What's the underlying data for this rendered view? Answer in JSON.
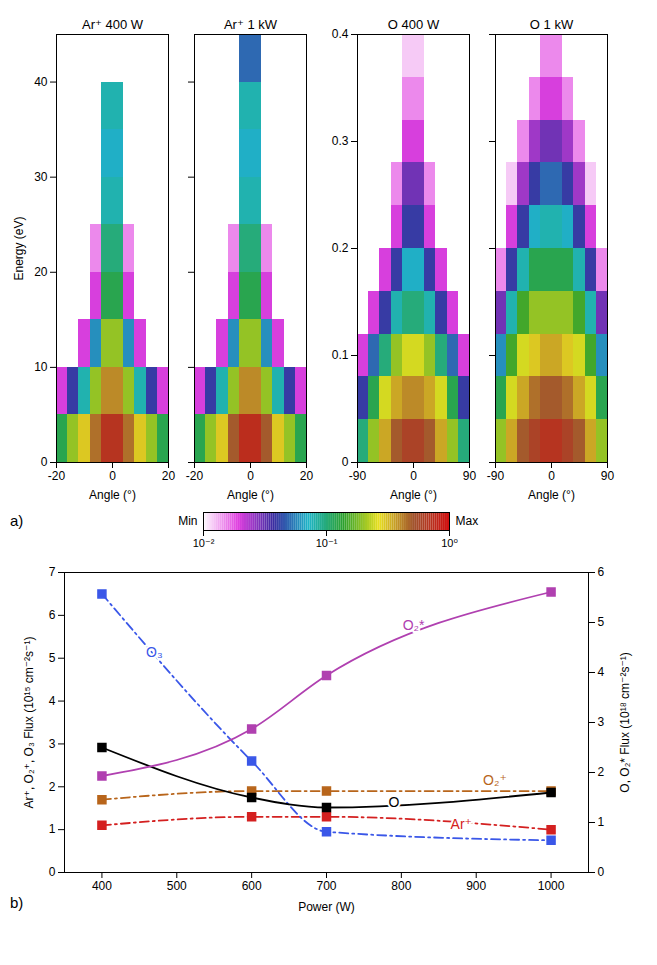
{
  "chart_data": [
    {
      "type": "heatmap",
      "panel_label": "a)",
      "title": "Ar⁺ 400 W",
      "xlabel": "Angle (°)",
      "ylabel": "Energy (eV)",
      "xlim": [
        -20,
        20
      ],
      "xticks": [
        -20,
        0,
        20
      ],
      "ylim": [
        0,
        45
      ],
      "yticks": [
        0,
        10,
        20,
        30,
        40
      ],
      "x_bins": [
        -20,
        -16,
        -12,
        -8,
        -4,
        0,
        4,
        8,
        12,
        16,
        20
      ],
      "y_bins": [
        0,
        5,
        10,
        15,
        20,
        25,
        30,
        35,
        40,
        45
      ],
      "cells": [
        [
          0.12,
          0.2,
          0.3,
          0.45,
          0.7,
          0.7,
          0.45,
          0.3,
          0.2,
          0.12
        ],
        [
          0.02,
          0.04,
          0.08,
          0.2,
          0.4,
          0.4,
          0.2,
          0.08,
          0.04,
          0.02
        ],
        [
          null,
          null,
          0.02,
          0.06,
          0.2,
          0.2,
          0.06,
          0.02,
          null,
          null
        ],
        [
          null,
          null,
          null,
          0.02,
          0.12,
          0.12,
          0.02,
          null,
          null,
          null
        ],
        [
          null,
          null,
          null,
          0.015,
          0.1,
          0.1,
          0.015,
          null,
          null,
          null
        ],
        [
          null,
          null,
          null,
          null,
          0.08,
          0.08,
          null,
          null,
          null,
          null
        ],
        [
          null,
          null,
          null,
          null,
          0.07,
          0.07,
          null,
          null,
          null,
          null
        ],
        [
          null,
          null,
          null,
          null,
          0.08,
          0.08,
          null,
          null,
          null,
          null
        ],
        [
          null,
          null,
          null,
          null,
          null,
          null,
          null,
          null,
          null,
          null
        ]
      ]
    },
    {
      "type": "heatmap",
      "title": "Ar⁺ 1 kW",
      "xlabel": "Angle (°)",
      "tick_labels": "x",
      "xlim": [
        -20,
        20
      ],
      "xticks": [
        -20,
        0,
        20
      ],
      "ylim": [
        0,
        45
      ],
      "yticks": [
        0,
        10,
        20,
        30,
        40
      ],
      "x_bins": [
        -20,
        -16,
        -12,
        -8,
        -4,
        0,
        4,
        8,
        12,
        16,
        20
      ],
      "y_bins": [
        0,
        5,
        10,
        15,
        20,
        25,
        30,
        35,
        40,
        45
      ],
      "cells": [
        [
          0.12,
          0.2,
          0.3,
          0.5,
          0.75,
          0.75,
          0.5,
          0.3,
          0.2,
          0.12
        ],
        [
          0.02,
          0.04,
          0.08,
          0.2,
          0.4,
          0.4,
          0.2,
          0.08,
          0.04,
          0.02
        ],
        [
          null,
          null,
          0.02,
          0.06,
          0.2,
          0.2,
          0.06,
          0.02,
          null,
          null
        ],
        [
          null,
          null,
          null,
          0.02,
          0.12,
          0.12,
          0.02,
          null,
          null,
          null
        ],
        [
          null,
          null,
          null,
          0.015,
          0.1,
          0.1,
          0.015,
          null,
          null,
          null
        ],
        [
          null,
          null,
          null,
          null,
          0.08,
          0.08,
          null,
          null,
          null,
          null
        ],
        [
          null,
          null,
          null,
          null,
          0.07,
          0.07,
          null,
          null,
          null,
          null
        ],
        [
          null,
          null,
          null,
          null,
          0.08,
          0.08,
          null,
          null,
          null,
          null
        ],
        [
          null,
          null,
          null,
          null,
          0.05,
          0.05,
          null,
          null,
          null,
          null
        ]
      ]
    },
    {
      "type": "heatmap",
      "title": "O 400 W",
      "xlabel": "Angle (°)",
      "xlim": [
        -90,
        90
      ],
      "xticks": [
        -90,
        0,
        90
      ],
      "ylim": [
        0,
        0.4
      ],
      "yticks": [
        0,
        0.1,
        0.2,
        0.3,
        0.4
      ],
      "x_bins": [
        -90,
        -72,
        -54,
        -36,
        -18,
        0,
        18,
        36,
        54,
        72,
        90
      ],
      "y_bins": [
        0,
        0.04,
        0.08,
        0.12,
        0.16,
        0.2,
        0.24,
        0.28,
        0.32,
        0.36,
        0.4
      ],
      "cells": [
        [
          0.1,
          0.2,
          0.35,
          0.5,
          0.6,
          0.6,
          0.5,
          0.35,
          0.2,
          0.1
        ],
        [
          0.04,
          0.12,
          0.25,
          0.35,
          0.4,
          0.4,
          0.35,
          0.25,
          0.12,
          0.04
        ],
        [
          0.02,
          0.05,
          0.1,
          0.2,
          0.25,
          0.25,
          0.2,
          0.1,
          0.05,
          0.02
        ],
        [
          null,
          0.02,
          0.04,
          0.08,
          0.1,
          0.1,
          0.08,
          0.04,
          0.02,
          null
        ],
        [
          null,
          null,
          0.02,
          0.04,
          0.07,
          0.07,
          0.04,
          0.02,
          null,
          null
        ],
        [
          null,
          null,
          0.01,
          0.02,
          0.04,
          0.04,
          0.02,
          0.01,
          null,
          null
        ],
        [
          null,
          null,
          null,
          0.015,
          0.03,
          0.03,
          0.015,
          null,
          null,
          null
        ],
        [
          null,
          null,
          null,
          0.01,
          0.02,
          0.02,
          0.01,
          null,
          null,
          null
        ],
        [
          null,
          null,
          null,
          null,
          0.015,
          0.015,
          null,
          null,
          null,
          null
        ],
        [
          null,
          null,
          null,
          null,
          0.012,
          0.012,
          null,
          null,
          null,
          null
        ]
      ]
    },
    {
      "type": "heatmap",
      "title": "O 1 kW",
      "xlabel": "Angle (°)",
      "tick_labels": "x",
      "xlim": [
        -90,
        90
      ],
      "xticks": [
        -90,
        0,
        90
      ],
      "ylim": [
        0,
        0.4
      ],
      "yticks": [
        0,
        0.1,
        0.2,
        0.3,
        0.4
      ],
      "x_bins": [
        -90,
        -72,
        -54,
        -36,
        -18,
        0,
        18,
        36,
        54,
        72,
        90
      ],
      "y_bins": [
        0,
        0.04,
        0.08,
        0.12,
        0.16,
        0.2,
        0.24,
        0.28,
        0.32,
        0.36,
        0.4
      ],
      "cells": [
        [
          0.2,
          0.35,
          0.5,
          0.6,
          0.7,
          0.7,
          0.6,
          0.5,
          0.35,
          0.2
        ],
        [
          0.12,
          0.25,
          0.35,
          0.45,
          0.5,
          0.5,
          0.45,
          0.35,
          0.25,
          0.12
        ],
        [
          0.06,
          0.15,
          0.25,
          0.3,
          0.35,
          0.35,
          0.3,
          0.25,
          0.15,
          0.06
        ],
        [
          0.03,
          0.08,
          0.15,
          0.2,
          0.2,
          0.2,
          0.2,
          0.15,
          0.08,
          0.03
        ],
        [
          0.015,
          0.04,
          0.08,
          0.12,
          0.12,
          0.12,
          0.12,
          0.08,
          0.04,
          0.015
        ],
        [
          null,
          0.02,
          0.04,
          0.07,
          0.08,
          0.08,
          0.07,
          0.04,
          0.02,
          null
        ],
        [
          null,
          0.012,
          0.025,
          0.04,
          0.05,
          0.05,
          0.04,
          0.025,
          0.012,
          null
        ],
        [
          null,
          null,
          0.015,
          0.025,
          0.03,
          0.03,
          0.025,
          0.015,
          null,
          null
        ],
        [
          null,
          null,
          0.01,
          0.015,
          0.02,
          0.02,
          0.015,
          0.01,
          null,
          null
        ],
        [
          null,
          null,
          null,
          0.01,
          0.015,
          0.015,
          0.01,
          null,
          null,
          null
        ]
      ]
    },
    {
      "type": "colorbar",
      "log": true,
      "range": [
        0.01,
        1
      ],
      "ticks": [
        {
          "value": 0.01,
          "label": "10⁻²"
        },
        {
          "value": 0.1,
          "label": "10⁻¹"
        },
        {
          "value": 1,
          "label": "10⁰"
        }
      ],
      "labels": [
        "Min",
        "Max"
      ],
      "colors": [
        "#ffffff",
        "#e040e0",
        "#3a2ca0",
        "#1fb5c8",
        "#2ca02c",
        "#e8e020",
        "#a0522d",
        "#d01010"
      ]
    },
    {
      "type": "line",
      "panel_label": "b)",
      "xlabel": "Power (W)",
      "ylabel": "Ar⁺, O₂⁺, O₃ Flux (10¹⁵ cm⁻²s⁻¹)",
      "y2label": "O, O₂* Flux (10¹⁸ cm⁻²s⁻¹)",
      "x": [
        400,
        600,
        700,
        1000
      ],
      "xlim": [
        350,
        1050
      ],
      "xticks": [
        400,
        500,
        600,
        700,
        800,
        900,
        1000
      ],
      "ylim": [
        0,
        7
      ],
      "yticks": [
        0,
        1,
        2,
        3,
        4,
        5,
        6,
        7
      ],
      "y2lim": [
        0,
        6
      ],
      "y2ticks": [
        0,
        1,
        2,
        3,
        4,
        5,
        6
      ],
      "marker": "square",
      "series": [
        {
          "name": "Ar⁺",
          "color": "#d42020",
          "line_style": "dashdot",
          "values": [
            1.1,
            1.3,
            1.3,
            1.0
          ]
        },
        {
          "name": "O₂⁺",
          "color": "#b8651b",
          "line_style": "dashdot",
          "values": [
            1.7,
            1.9,
            1.9,
            1.9
          ]
        },
        {
          "name": "O₃",
          "color": "#3a57e8",
          "line_style": "dashdot",
          "values": [
            6.5,
            2.6,
            0.95,
            0.75
          ]
        },
        {
          "name": "O",
          "color": "#000000",
          "line_style": "solid",
          "axis": "y2",
          "values": [
            2.5,
            1.5,
            1.3,
            1.6
          ]
        },
        {
          "name": "O₂*",
          "color": "#b040b0",
          "line_style": "solid",
          "axis": "y2",
          "values": [
            1.93,
            2.87,
            3.94,
            5.61
          ]
        }
      ]
    }
  ]
}
